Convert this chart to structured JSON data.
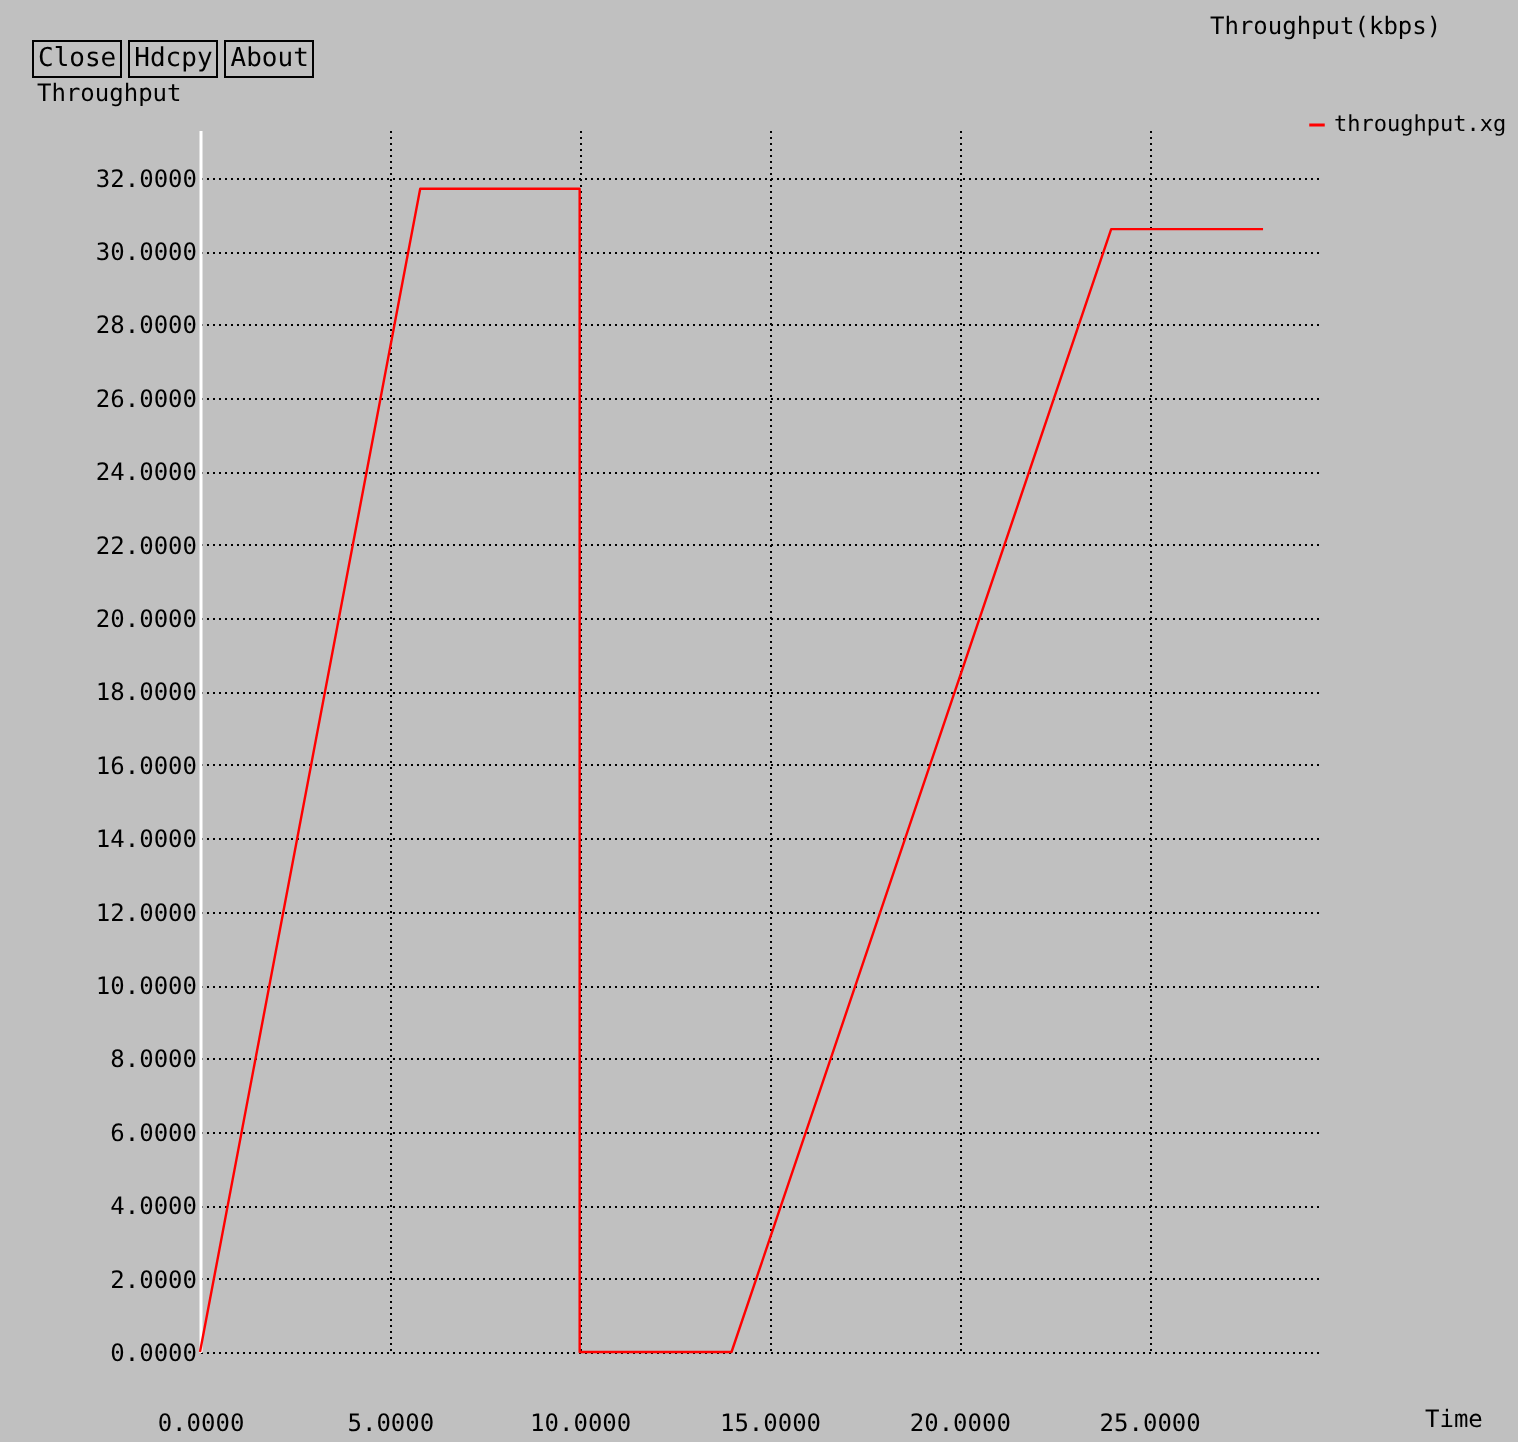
{
  "chart_data": {
    "type": "line",
    "title": "Throughput(kbps)",
    "xlabel": "Time",
    "ylabel": "Throughput",
    "annotations": [
      "Close",
      "Hdcpy",
      "About"
    ],
    "x": [
      0,
      5.8,
      10,
      10,
      14,
      24,
      28
    ],
    "series": [
      {
        "name": "throughput.xg",
        "color": "#ff0000",
        "values": [
          0,
          31.7,
          31.7,
          0,
          0,
          30.6,
          30.6
        ]
      }
    ],
    "xlim": [
      0,
      29.5
    ],
    "ylim": [
      0,
      33.3
    ],
    "xticks": [
      {
        "value": 0,
        "label": "0.0000"
      },
      {
        "value": 5,
        "label": "5.0000"
      },
      {
        "value": 10,
        "label": "10.0000"
      },
      {
        "value": 15,
        "label": "15.0000"
      },
      {
        "value": 20,
        "label": "20.0000"
      },
      {
        "value": 25,
        "label": "25.0000"
      }
    ],
    "yticks": [
      {
        "value": 0,
        "label": "0.0000"
      },
      {
        "value": 2,
        "label": "2.0000"
      },
      {
        "value": 4,
        "label": "4.0000"
      },
      {
        "value": 6,
        "label": "6.0000"
      },
      {
        "value": 8,
        "label": "8.0000"
      },
      {
        "value": 10,
        "label": "10.0000"
      },
      {
        "value": 12,
        "label": "12.0000"
      },
      {
        "value": 14,
        "label": "14.0000"
      },
      {
        "value": 16,
        "label": "16.0000"
      },
      {
        "value": 18,
        "label": "18.0000"
      },
      {
        "value": 20,
        "label": "20.0000"
      },
      {
        "value": 22,
        "label": "22.0000"
      },
      {
        "value": 24,
        "label": "24.0000"
      },
      {
        "value": 26,
        "label": "26.0000"
      },
      {
        "value": 28,
        "label": "28.0000"
      },
      {
        "value": 30,
        "label": "30.0000"
      },
      {
        "value": 32,
        "label": "32.0000"
      }
    ],
    "grid": true,
    "legend": "top right",
    "marker": "none",
    "line_style": "solid"
  }
}
